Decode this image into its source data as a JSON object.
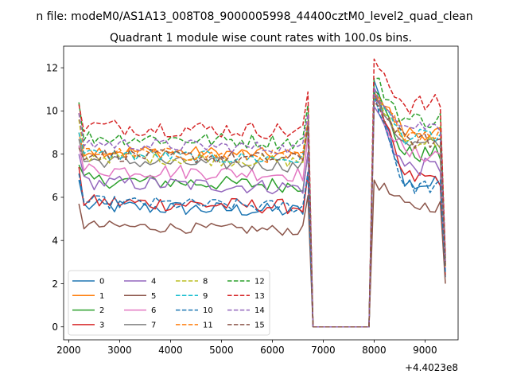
{
  "suptitle": "n file: modeM0/AS1A13_008T08_9000005998_44400cztM0_level2_quad_clean",
  "chart_data": {
    "type": "line",
    "title": "Quadrant 1 module wise count rates with 100.0s bins.",
    "xlabel": "",
    "ylabel": "",
    "x_offset_label": "+4.4023e8",
    "xlim": [
      1900,
      9650
    ],
    "ylim": [
      -0.6,
      13
    ],
    "x_ticks": [
      2000,
      3000,
      4000,
      5000,
      6000,
      7000,
      8000,
      9000
    ],
    "y_ticks": [
      0,
      2,
      4,
      6,
      8,
      10,
      12
    ],
    "x_tick_labels": [
      "2000",
      "3000",
      "4000",
      "5000",
      "6000",
      "7000",
      "8000",
      "9000"
    ],
    "y_tick_labels": [
      "0",
      "2",
      "4",
      "6",
      "8",
      "10",
      "12"
    ],
    "grid": false,
    "legend_position": "lower-left",
    "legend_columns": 4,
    "segments": {
      "seg1": {
        "start": 2200,
        "end": 6700,
        "step": 100
      },
      "gap": [
        6800,
        6900,
        7900
      ],
      "seg2": {
        "start": 8000,
        "end": 9300,
        "step": 100
      },
      "end_x": 9400
    },
    "series": [
      {
        "name": "0",
        "color": "#1f77b4",
        "dash": "solid",
        "base": 5.6,
        "amp": 0.35,
        "peak1": 6.8,
        "peak2": 11.4,
        "level2": 6.6,
        "final": 2.3
      },
      {
        "name": "1",
        "color": "#ff7f0e",
        "dash": "solid",
        "base": 8.2,
        "amp": 0.3,
        "peak1": 9.0,
        "peak2": 10.9,
        "level2": 9.0,
        "final": 2.8
      },
      {
        "name": "2",
        "color": "#2ca02c",
        "dash": "solid",
        "base": 6.8,
        "amp": 0.35,
        "peak1": 7.5,
        "peak2": 11.0,
        "level2": 8.0,
        "final": 3.0
      },
      {
        "name": "3",
        "color": "#d62728",
        "dash": "solid",
        "base": 5.8,
        "amp": 0.35,
        "peak1": 7.4,
        "peak2": 10.6,
        "level2": 6.9,
        "final": 2.4
      },
      {
        "name": "4",
        "color": "#9467bd",
        "dash": "solid",
        "base": 6.7,
        "amp": 0.35,
        "peak1": 8.0,
        "peak2": 10.2,
        "level2": 7.4,
        "final": 2.6
      },
      {
        "name": "5",
        "color": "#8c564b",
        "dash": "solid",
        "base": 4.7,
        "amp": 0.25,
        "peak1": 5.7,
        "peak2": 6.8,
        "level2": 5.6,
        "final": 2.0
      },
      {
        "name": "6",
        "color": "#e377c2",
        "dash": "solid",
        "base": 7.3,
        "amp": 0.35,
        "peak1": 8.4,
        "peak2": 10.5,
        "level2": 8.0,
        "final": 2.7
      },
      {
        "name": "7",
        "color": "#7f7f7f",
        "dash": "solid",
        "base": 7.7,
        "amp": 0.3,
        "peak1": 8.7,
        "peak2": 10.8,
        "level2": 8.4,
        "final": 2.9
      },
      {
        "name": "8",
        "color": "#bcbd22",
        "dash": "dashed",
        "base": 7.9,
        "amp": 0.3,
        "peak1": 9.6,
        "peak2": 10.7,
        "level2": 8.6,
        "final": 2.8
      },
      {
        "name": "9",
        "color": "#17becf",
        "dash": "dashed",
        "base": 8.0,
        "amp": 0.3,
        "peak1": 9.0,
        "peak2": 10.6,
        "level2": 8.8,
        "final": 2.9
      },
      {
        "name": "10",
        "color": "#1f77b4",
        "dash": "dashed",
        "base": 5.8,
        "amp": 0.3,
        "peak1": 7.1,
        "peak2": 10.9,
        "level2": 6.5,
        "final": 2.5
      },
      {
        "name": "11",
        "color": "#ff7f0e",
        "dash": "dashed",
        "base": 8.1,
        "amp": 0.3,
        "peak1": 9.9,
        "peak2": 10.6,
        "level2": 9.0,
        "final": 2.9
      },
      {
        "name": "12",
        "color": "#2ca02c",
        "dash": "dashed",
        "base": 8.8,
        "amp": 0.35,
        "peak1": 10.4,
        "peak2": 11.5,
        "level2": 9.6,
        "final": 3.2
      },
      {
        "name": "13",
        "color": "#d62728",
        "dash": "dashed",
        "base": 9.3,
        "amp": 0.4,
        "peak1": 10.3,
        "peak2": 12.4,
        "level2": 10.3,
        "final": 3.3
      },
      {
        "name": "14",
        "color": "#9467bd",
        "dash": "dashed",
        "base": 8.5,
        "amp": 0.3,
        "peak1": 9.9,
        "peak2": 11.1,
        "level2": 9.3,
        "final": 3.0
      },
      {
        "name": "15",
        "color": "#8c564b",
        "dash": "dashed",
        "base": 8.0,
        "amp": 0.3,
        "peak1": 8.3,
        "peak2": 10.4,
        "level2": 8.6,
        "final": 2.8
      }
    ]
  }
}
